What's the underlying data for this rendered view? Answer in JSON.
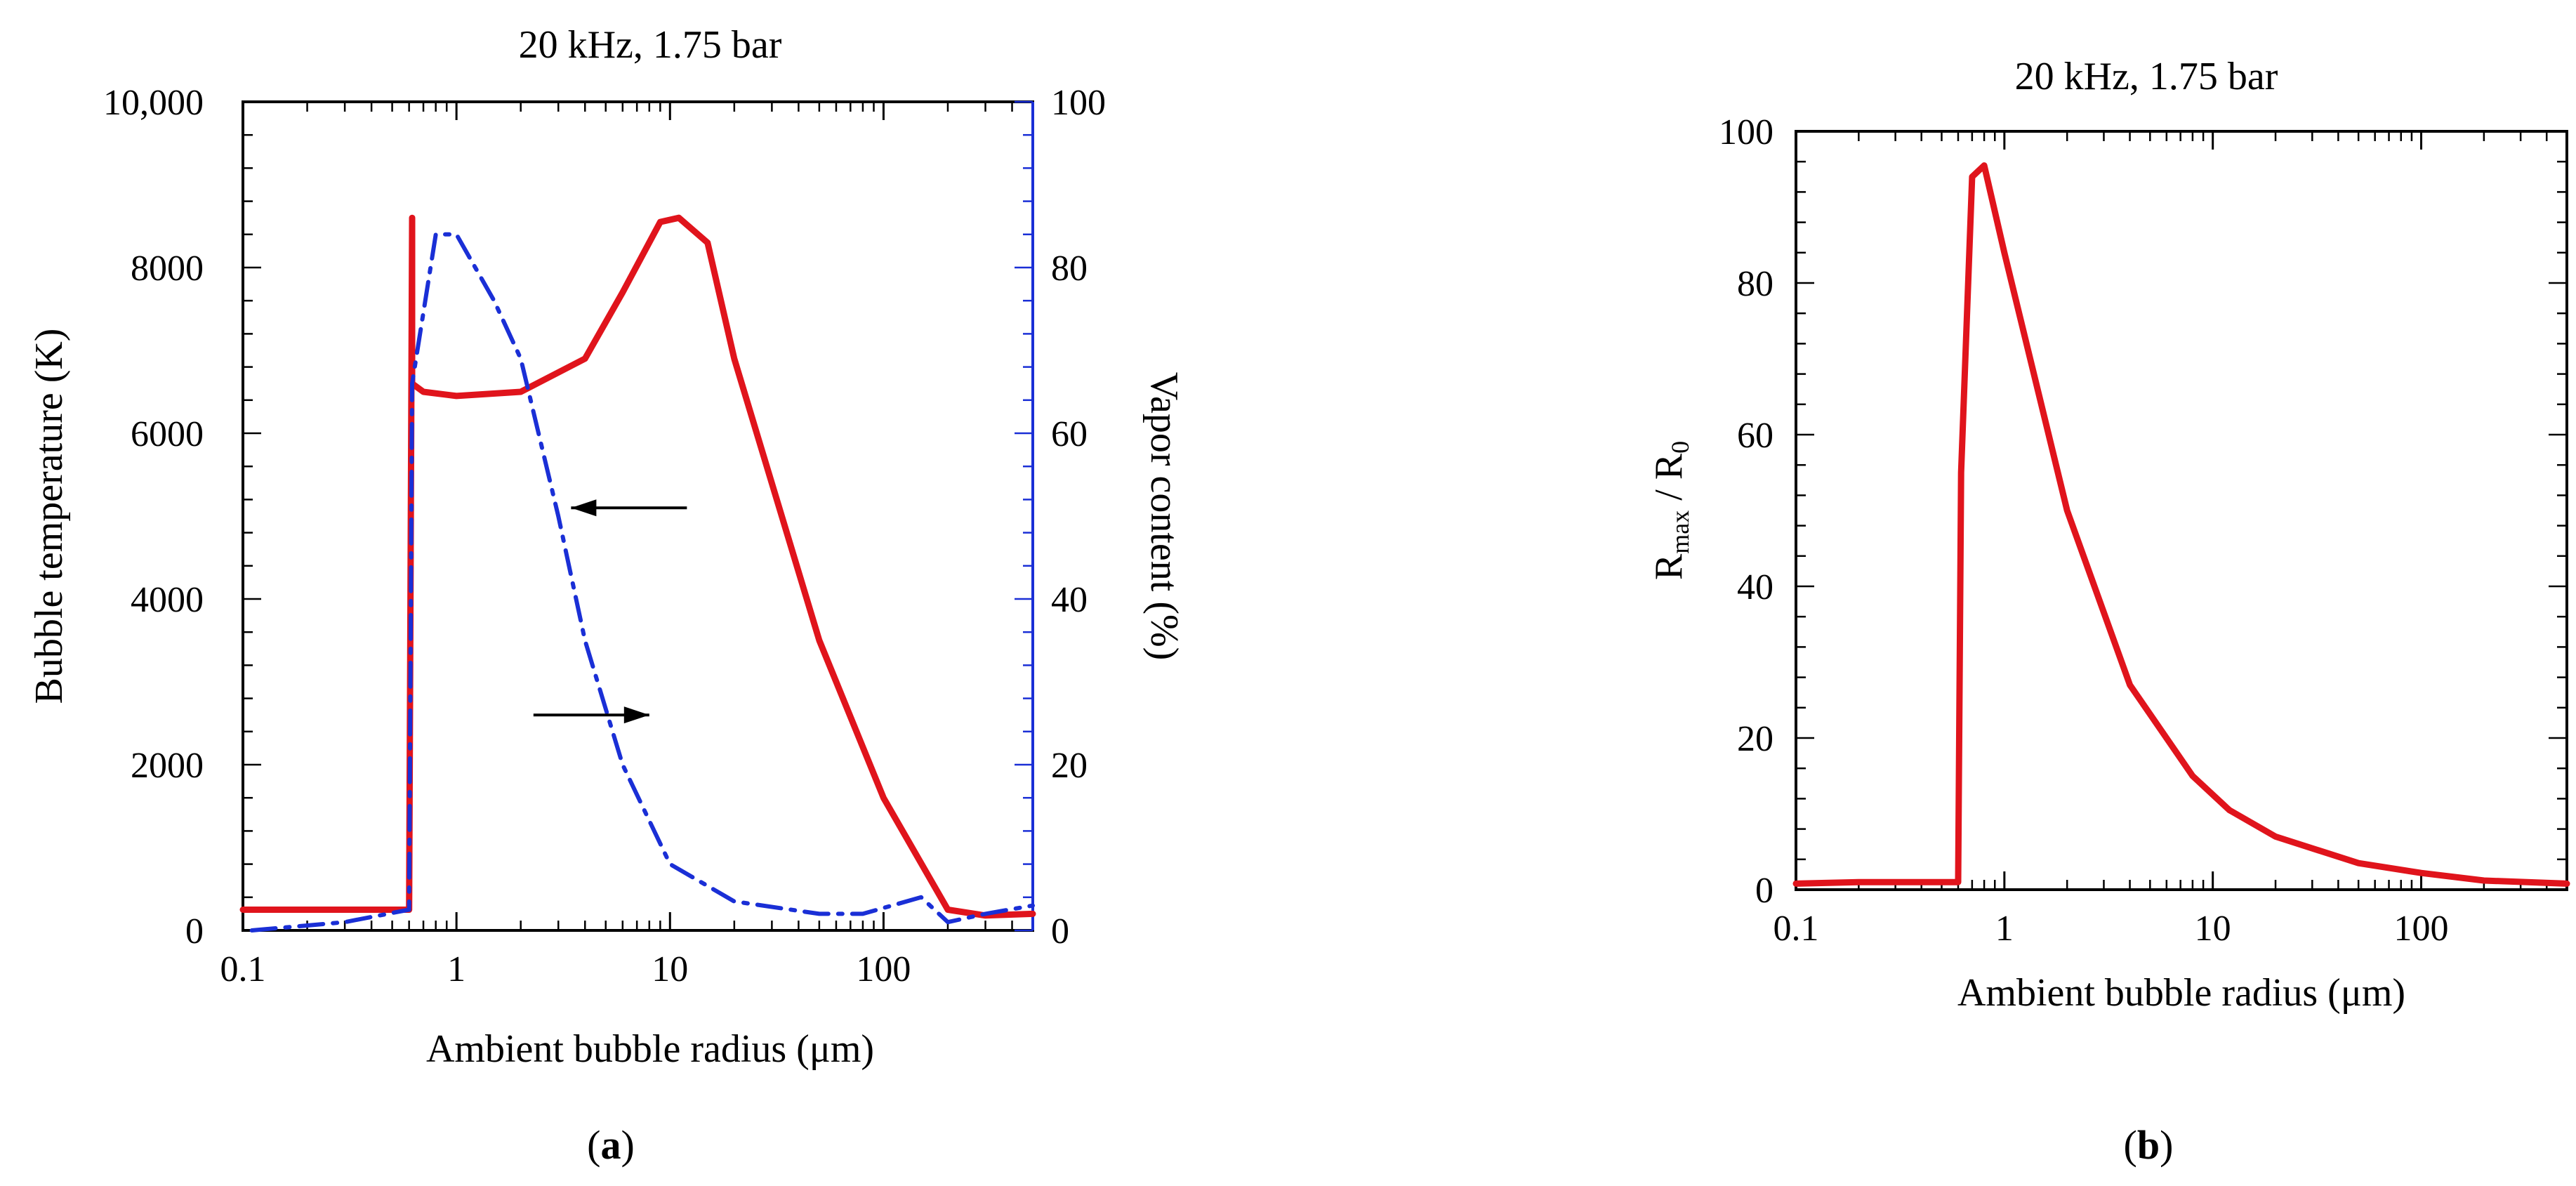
{
  "chart_data": [
    {
      "type": "line",
      "panel_label": "(a)",
      "panel_letter": "a",
      "title": "20 kHz, 1.75 bar",
      "xlabel": "Ambient bubble radius (μm)",
      "ylabel": "Bubble temperature (K)",
      "y2label": "Vapor content (%)",
      "xscale": "log",
      "xlim": [
        0.1,
        500
      ],
      "ylim": [
        0,
        10000
      ],
      "y2lim": [
        0,
        100
      ],
      "xticks": [
        {
          "value": 0.1,
          "label": "0.1"
        },
        {
          "value": 1,
          "label": "1"
        },
        {
          "value": 10,
          "label": "10"
        },
        {
          "value": 100,
          "label": "100"
        }
      ],
      "yticks": [
        {
          "value": 0,
          "label": "0"
        },
        {
          "value": 2000,
          "label": "2000"
        },
        {
          "value": 4000,
          "label": "4000"
        },
        {
          "value": 6000,
          "label": "6000"
        },
        {
          "value": 8000,
          "label": "8000"
        },
        {
          "value": 10000,
          "label": "10,000"
        }
      ],
      "y2ticks": [
        {
          "value": 0,
          "label": "0"
        },
        {
          "value": 20,
          "label": "20"
        },
        {
          "value": 40,
          "label": "40"
        },
        {
          "value": 60,
          "label": "60"
        },
        {
          "value": 80,
          "label": "80"
        },
        {
          "value": 100,
          "label": "100"
        }
      ],
      "series": [
        {
          "name": "Bubble temperature",
          "axis": "left",
          "color": "#e0141c",
          "style": "solid",
          "points": [
            [
              0.1,
              250
            ],
            [
              0.6,
              250
            ],
            [
              0.62,
              8600
            ],
            [
              0.62,
              6600
            ],
            [
              0.7,
              6500
            ],
            [
              1.0,
              6450
            ],
            [
              2.0,
              6500
            ],
            [
              4.0,
              6900
            ],
            [
              6.0,
              7700
            ],
            [
              9.0,
              8550
            ],
            [
              11.0,
              8600
            ],
            [
              15.0,
              8300
            ],
            [
              20.0,
              6900
            ],
            [
              50.0,
              3500
            ],
            [
              100.0,
              1600
            ],
            [
              200.0,
              250
            ],
            [
              300.0,
              180
            ],
            [
              500.0,
              200
            ]
          ]
        },
        {
          "name": "Vapor content",
          "axis": "right",
          "color": "#1a2fd6",
          "style": "dashdot",
          "points": [
            [
              0.11,
              0
            ],
            [
              0.3,
              1
            ],
            [
              0.6,
              2.5
            ],
            [
              0.62,
              66
            ],
            [
              0.8,
              84
            ],
            [
              1.0,
              84
            ],
            [
              1.5,
              76
            ],
            [
              2.0,
              69
            ],
            [
              3.0,
              50
            ],
            [
              4.0,
              35
            ],
            [
              6.0,
              20
            ],
            [
              10.0,
              8
            ],
            [
              20.0,
              3.5
            ],
            [
              50.0,
              2
            ],
            [
              80.0,
              2
            ],
            [
              150.0,
              4
            ],
            [
              200.0,
              1
            ],
            [
              300.0,
              2
            ],
            [
              500.0,
              3
            ]
          ]
        }
      ],
      "annotations": [
        {
          "text": "arrow pointing left",
          "target_axis": "left",
          "x": 12,
          "y": 5100
        },
        {
          "text": "arrow pointing right",
          "target_axis": "right",
          "x": 8,
          "y": 26
        }
      ]
    },
    {
      "type": "line",
      "panel_label": "(b)",
      "panel_letter": "b",
      "title": "20 kHz, 1.75 bar",
      "xlabel": "Ambient bubble radius (μm)",
      "ylabel_main": "R",
      "ylabel_sub1": "max",
      "ylabel_mid": " / R",
      "ylabel_sub2": "0",
      "xscale": "log",
      "xlim": [
        0.1,
        500
      ],
      "ylim": [
        0,
        100
      ],
      "xticks": [
        {
          "value": 0.1,
          "label": "0.1"
        },
        {
          "value": 1,
          "label": "1"
        },
        {
          "value": 10,
          "label": "10"
        },
        {
          "value": 100,
          "label": "100"
        }
      ],
      "yticks": [
        {
          "value": 0,
          "label": "0"
        },
        {
          "value": 20,
          "label": "20"
        },
        {
          "value": 40,
          "label": "40"
        },
        {
          "value": 60,
          "label": "60"
        },
        {
          "value": 80,
          "label": "80"
        },
        {
          "value": 100,
          "label": "100"
        }
      ],
      "series": [
        {
          "name": "Rmax / R0",
          "color": "#e0141c",
          "style": "solid",
          "points": [
            [
              0.1,
              0.8
            ],
            [
              0.2,
              1.0
            ],
            [
              0.6,
              1.0
            ],
            [
              0.62,
              55
            ],
            [
              0.7,
              94
            ],
            [
              0.8,
              95.5
            ],
            [
              1.0,
              84
            ],
            [
              2.0,
              50
            ],
            [
              4.0,
              27
            ],
            [
              8.0,
              15
            ],
            [
              12.0,
              10.5
            ],
            [
              20.0,
              7
            ],
            [
              50.0,
              3.5
            ],
            [
              100.0,
              2.2
            ],
            [
              200.0,
              1.2
            ],
            [
              500.0,
              0.8
            ]
          ]
        }
      ]
    }
  ]
}
